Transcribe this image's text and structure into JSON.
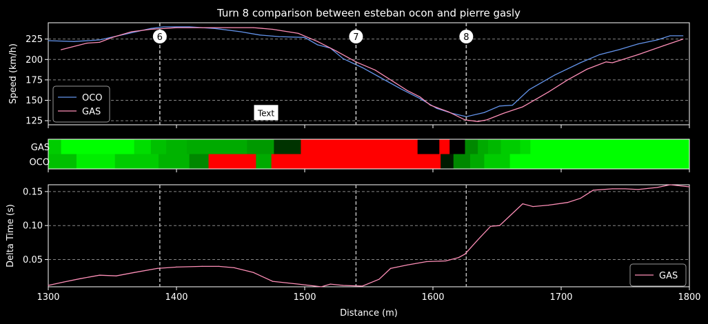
{
  "chart_data": {
    "type": "line",
    "title": "Turn 8 comparison between esteban ocon and pierre gasly",
    "xlabel": "Distance (m)",
    "xlim": [
      1300,
      1800
    ],
    "x_ticks": [
      "1300",
      "1400",
      "1500",
      "1600",
      "1700",
      "1800"
    ],
    "corners": [
      {
        "label": "6",
        "x": 1387
      },
      {
        "label": "7",
        "x": 1540
      },
      {
        "label": "8",
        "x": 1626
      }
    ],
    "speed_panel": {
      "ylabel": "Speed (km/h)",
      "ylim": [
        120,
        245
      ],
      "y_ticks": [
        "125",
        "150",
        "175",
        "200",
        "225"
      ],
      "legend": {
        "position": "lower-left"
      },
      "annotation": "Text",
      "annotation_x": 1468,
      "annotation_y": 140,
      "series": [
        {
          "name": "OCO",
          "color": "#6495ed",
          "x": [
            1300,
            1320,
            1340,
            1360,
            1380,
            1390,
            1410,
            1430,
            1450,
            1465,
            1480,
            1500,
            1510,
            1520,
            1530,
            1545,
            1560,
            1575,
            1590,
            1603,
            1615,
            1626,
            1640,
            1652,
            1662,
            1675,
            1695,
            1715,
            1730,
            1745,
            1760,
            1775,
            1785,
            1795
          ],
          "y": [
            223,
            222,
            224,
            231,
            238,
            240,
            240,
            238,
            234,
            230,
            228,
            227,
            218,
            214,
            201,
            190,
            177,
            164,
            152,
            140,
            134,
            130,
            135,
            143,
            144,
            163,
            181,
            196,
            206,
            212,
            219,
            224,
            229,
            229
          ]
        },
        {
          "name": "GAS",
          "color": "#ff8fb8",
          "x": [
            1310,
            1330,
            1340,
            1350,
            1365,
            1380,
            1400,
            1420,
            1440,
            1460,
            1475,
            1495,
            1510,
            1525,
            1540,
            1555,
            1570,
            1580,
            1590,
            1598,
            1612,
            1625,
            1635,
            1642,
            1655,
            1670,
            1690,
            1705,
            1720,
            1735,
            1740,
            1760,
            1780,
            1795
          ],
          "y": [
            212,
            220,
            221,
            227,
            234,
            237,
            239,
            239,
            239,
            239,
            237,
            232,
            222,
            210,
            197,
            187,
            172,
            162,
            154,
            144,
            136,
            126,
            124,
            126,
            134,
            142,
            160,
            175,
            188,
            197,
            196,
            206,
            217,
            225
          ]
        }
      ]
    },
    "gear_panel": {
      "rows": [
        {
          "label": "GAS",
          "segments": [
            {
              "x0": 1300,
              "x1": 1310,
              "color": "#00cc00"
            },
            {
              "x0": 1310,
              "x1": 1367,
              "color": "#00ff00"
            },
            {
              "x0": 1367,
              "x1": 1380,
              "color": "#00dd00"
            },
            {
              "x0": 1380,
              "x1": 1392,
              "color": "#00c000"
            },
            {
              "x0": 1392,
              "x1": 1408,
              "color": "#00b300"
            },
            {
              "x0": 1408,
              "x1": 1455,
              "color": "#00aa00"
            },
            {
              "x0": 1455,
              "x1": 1476,
              "color": "#009900"
            },
            {
              "x0": 1476,
              "x1": 1497,
              "color": "#003300"
            },
            {
              "x0": 1497,
              "x1": 1588,
              "color": "#ff0000"
            },
            {
              "x0": 1588,
              "x1": 1605,
              "color": "#000000"
            },
            {
              "x0": 1605,
              "x1": 1613,
              "color": "#ff0000"
            },
            {
              "x0": 1613,
              "x1": 1625,
              "color": "#000000"
            },
            {
              "x0": 1625,
              "x1": 1635,
              "color": "#008800"
            },
            {
              "x0": 1635,
              "x1": 1643,
              "color": "#00aa00"
            },
            {
              "x0": 1643,
              "x1": 1653,
              "color": "#00b800"
            },
            {
              "x0": 1653,
              "x1": 1668,
              "color": "#00cc00"
            },
            {
              "x0": 1668,
              "x1": 1676,
              "color": "#00dd00"
            },
            {
              "x0": 1676,
              "x1": 1800,
              "color": "#00ff00"
            }
          ]
        },
        {
          "label": "OCO",
          "segments": [
            {
              "x0": 1300,
              "x1": 1322,
              "color": "#00c000"
            },
            {
              "x0": 1322,
              "x1": 1352,
              "color": "#00ee00"
            },
            {
              "x0": 1352,
              "x1": 1386,
              "color": "#00cc00"
            },
            {
              "x0": 1386,
              "x1": 1410,
              "color": "#00b300"
            },
            {
              "x0": 1410,
              "x1": 1425,
              "color": "#008800"
            },
            {
              "x0": 1425,
              "x1": 1462,
              "color": "#ff0000"
            },
            {
              "x0": 1462,
              "x1": 1474,
              "color": "#00aa00"
            },
            {
              "x0": 1474,
              "x1": 1606,
              "color": "#ff0000"
            },
            {
              "x0": 1606,
              "x1": 1616,
              "color": "#001a00"
            },
            {
              "x0": 1616,
              "x1": 1629,
              "color": "#008800"
            },
            {
              "x0": 1629,
              "x1": 1640,
              "color": "#00aa00"
            },
            {
              "x0": 1640,
              "x1": 1660,
              "color": "#00cc00"
            },
            {
              "x0": 1660,
              "x1": 1800,
              "color": "#00ff00"
            }
          ]
        }
      ]
    },
    "delta_panel": {
      "ylabel": "Delta Time (s)",
      "ylim": [
        0.01,
        0.16
      ],
      "y_ticks": [
        "0.05",
        "0.10",
        "0.15"
      ],
      "legend": {
        "position": "lower-right"
      },
      "series": [
        {
          "name": "GAS",
          "color": "#ff8fb8",
          "x": [
            1300,
            1312,
            1325,
            1340,
            1353,
            1367,
            1385,
            1400,
            1420,
            1433,
            1445,
            1460,
            1475,
            1495,
            1513,
            1520,
            1530,
            1545,
            1558,
            1567,
            1580,
            1595,
            1610,
            1620,
            1625,
            1635,
            1645,
            1652,
            1670,
            1678,
            1690,
            1705,
            1715,
            1725,
            1740,
            1750,
            1760,
            1775,
            1785,
            1800
          ],
          "y": [
            0.012,
            0.017,
            0.022,
            0.027,
            0.026,
            0.031,
            0.037,
            0.039,
            0.04,
            0.04,
            0.038,
            0.031,
            0.018,
            0.014,
            0.01,
            0.014,
            0.012,
            0.011,
            0.021,
            0.037,
            0.042,
            0.047,
            0.048,
            0.053,
            0.058,
            0.079,
            0.099,
            0.1,
            0.132,
            0.128,
            0.13,
            0.134,
            0.14,
            0.152,
            0.154,
            0.154,
            0.153,
            0.156,
            0.16,
            0.157
          ]
        }
      ]
    }
  }
}
